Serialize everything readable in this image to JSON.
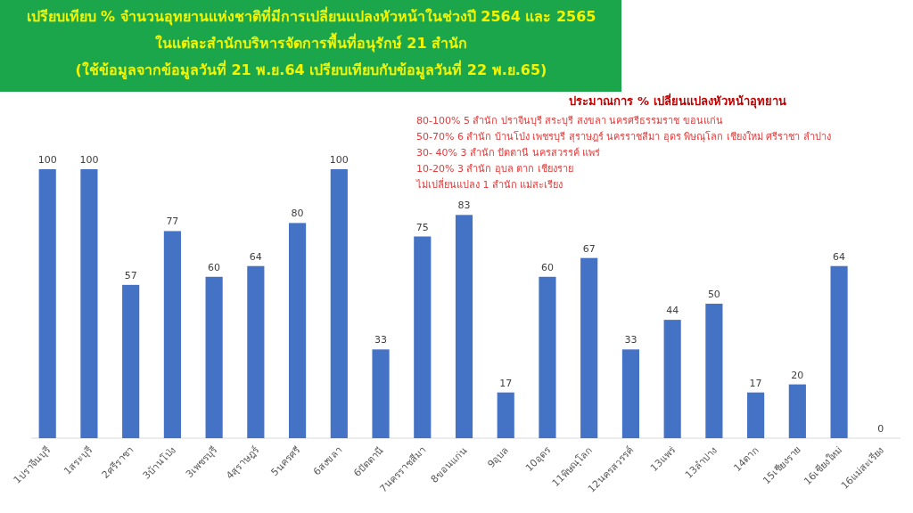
{
  "chart_data": {
    "type": "bar",
    "title": "เปรียบเทียบ % จำนวนอุทยานแห่งชาติที่มีการเปลี่ยนแปลงหัวหน้าในช่วงปี 2564 และ 2565\nในแต่ละสำนักบริหารจัดการพื้นที่อนุรักษ์ 21 สำนัก",
    "subtitle": "(ใช้ข้อมูลจากข้อมูลวันที่ 21 พ.ย.64 เปรียบเทียบกับข้อมูลวันที่ 22 พ.ย.65)",
    "categories": [
      "1ปราจีนบุรี",
      "1สระบุรี",
      "2ศรีราชา",
      "3บ้านโป่ง",
      "3เพชรบุรี",
      "4สุราษฎร์",
      "5นครศรี",
      "6สงขลา",
      "6ปัตตานี",
      "7นครราชสีมา",
      "8ขอนแก่น",
      "9อุบล",
      "10อุดร",
      "11พิษณุโลก",
      "12นครสวรรค์",
      "13แพร่",
      "13ลำปาง",
      "14ตาก",
      "15เชียงราย",
      "16เชียงใหม่",
      "16แม่สะเรียง"
    ],
    "values": [
      100,
      100,
      57,
      77,
      60,
      64,
      80,
      100,
      33,
      75,
      83,
      17,
      60,
      67,
      33,
      44,
      50,
      17,
      20,
      64,
      0
    ],
    "color": "#4472c4",
    "data_labels": true,
    "annotations": [
      "ประมาณการ % เปลี่ยนแปลงหัวหน้าอุทยาน",
      "80-100% 5 สำนัก ปราจีนบุรี สระบุรี สงขลา นครศรีธรรมราช ขอนแก่น",
      "50-70% 6 สำนัก บ้านโป่ง เพชรบุรี สุราษฎร์ นครราชสีมา อุดร พิษณุโลก เชียงใหม่ ศรีราชา ลำปาง",
      "30- 40% 3 สำนัก ปัตตานี นครสวรรค์ แพร่",
      "10-20% 3 สำนัก อุบล ตาก เชียงราย",
      "ไม่เปลี่ยนแปลง 1 สำนัก แม่สะเรียง"
    ]
  }
}
